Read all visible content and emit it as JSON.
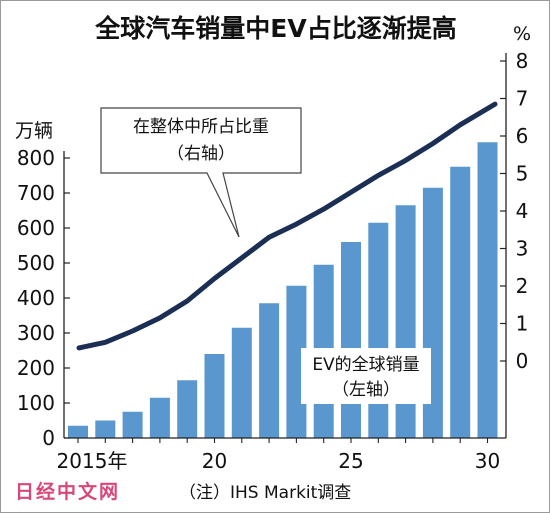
{
  "chart_data": {
    "type": "bar+line",
    "title": "全球汽车销量中EV占比逐渐提高",
    "x": [
      2015,
      2016,
      2017,
      2018,
      2019,
      2020,
      2021,
      2022,
      2023,
      2024,
      2025,
      2026,
      2027,
      2028,
      2029,
      2030
    ],
    "x_tick_labels": [
      {
        "x": 2015,
        "label": "2015年"
      },
      {
        "x": 2020,
        "label": "20"
      },
      {
        "x": 2025,
        "label": "25"
      },
      {
        "x": 2030,
        "label": "30"
      }
    ],
    "series": [
      {
        "name": "EV的全球销量",
        "axis_note": "（左轴）",
        "kind": "bar",
        "axis": "left",
        "color": "#5b97cf",
        "values": [
          35,
          50,
          75,
          115,
          165,
          240,
          315,
          385,
          435,
          495,
          560,
          615,
          665,
          715,
          775,
          845
        ]
      },
      {
        "name": "在整体中所占比重",
        "axis_note": "（右轴）",
        "kind": "line",
        "axis": "right",
        "color": "#1b2f55",
        "values": [
          0.35,
          0.5,
          0.8,
          1.15,
          1.6,
          2.2,
          2.75,
          3.3,
          3.65,
          4.05,
          4.5,
          4.95,
          5.35,
          5.8,
          6.3,
          6.85
        ]
      }
    ],
    "y_left": {
      "unit": "万辆",
      "range": [
        0,
        900
      ],
      "ticks": [
        0,
        100,
        200,
        300,
        400,
        500,
        600,
        700,
        800
      ]
    },
    "y_right": {
      "unit": "%",
      "range": [
        0,
        8
      ],
      "ticks": [
        0,
        1,
        2,
        3,
        4,
        5,
        6,
        7,
        8
      ]
    },
    "source_note": "（注）IHS Markit调查",
    "logo_text": "日经中文网",
    "grid": false
  }
}
